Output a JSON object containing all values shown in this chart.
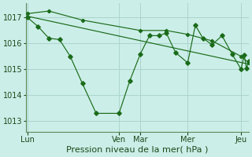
{
  "background_color": "#cceee8",
  "grid_color": "#aad4cc",
  "line_color": "#1a6b1a",
  "xlabel": "Pression niveau de la mer( hPa )",
  "ylim": [
    1012.6,
    1017.55
  ],
  "yticks": [
    1013,
    1014,
    1015,
    1016,
    1017
  ],
  "xlim": [
    -2,
    290
  ],
  "day_x": [
    0,
    120,
    148,
    210,
    280
  ],
  "day_labels": [
    "Lun",
    "Ven",
    "Mar",
    "Mer",
    "Jeu"
  ],
  "series1_x": [
    0,
    14,
    28,
    42,
    56,
    72,
    90,
    120,
    134,
    148,
    160,
    172,
    182,
    194,
    210,
    220,
    230,
    242,
    255,
    268,
    280,
    284,
    287,
    290
  ],
  "series1_y": [
    1017.0,
    1016.65,
    1016.2,
    1016.15,
    1015.5,
    1014.45,
    1013.3,
    1013.3,
    1014.55,
    1015.6,
    1016.3,
    1016.3,
    1016.4,
    1015.65,
    1015.25,
    1016.7,
    1016.2,
    1015.95,
    1016.3,
    1015.6,
    1015.0,
    1015.55,
    1015.05,
    1015.3
  ],
  "series2_x": [
    0,
    28,
    72,
    148,
    182,
    210,
    242,
    280,
    290
  ],
  "series2_y": [
    1017.15,
    1017.25,
    1016.9,
    1016.5,
    1016.5,
    1016.35,
    1016.1,
    1015.5,
    1015.25
  ],
  "series3_x": [
    0,
    290
  ],
  "series3_y": [
    1017.05,
    1015.2
  ],
  "xlabel_fontsize": 8,
  "tick_fontsize": 7
}
